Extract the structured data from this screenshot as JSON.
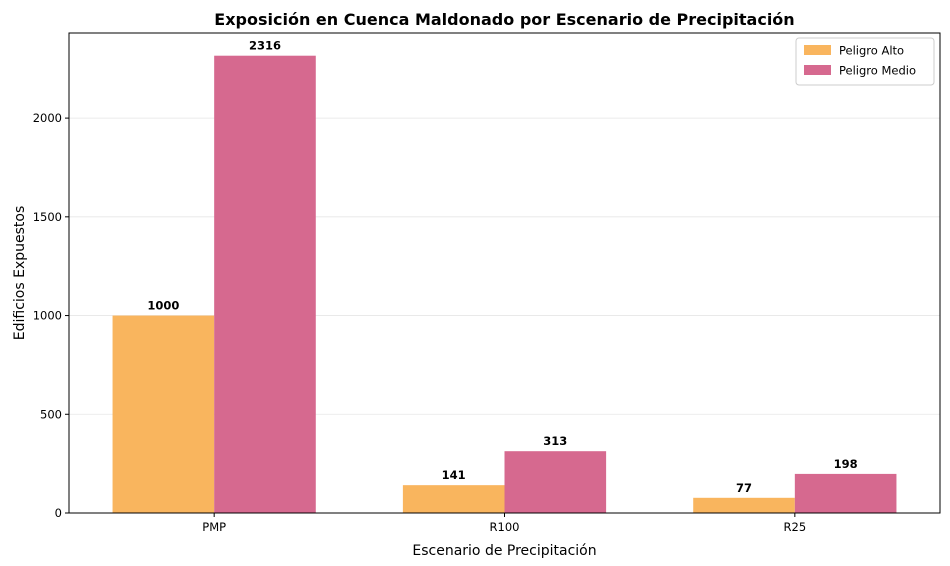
{
  "chart_data": {
    "type": "bar",
    "title": "Exposición en Cuenca Maldonado por Escenario de Precipitación",
    "xlabel": "Escenario de Precipitación",
    "ylabel": "Edificios Expuestos",
    "categories": [
      "PMP",
      "R100",
      "R25"
    ],
    "series": [
      {
        "name": "Peligro Alto",
        "values": [
          1000,
          141,
          77
        ],
        "color": "#F9B55E"
      },
      {
        "name": "Peligro Medio",
        "values": [
          2316,
          313,
          198
        ],
        "color": "#D6698F"
      }
    ],
    "yticks": [
      0,
      500,
      1000,
      1500,
      2000
    ],
    "ylim": [
      0,
      2431
    ],
    "grid": true,
    "legend_position": "top-right",
    "data_labels": true
  }
}
